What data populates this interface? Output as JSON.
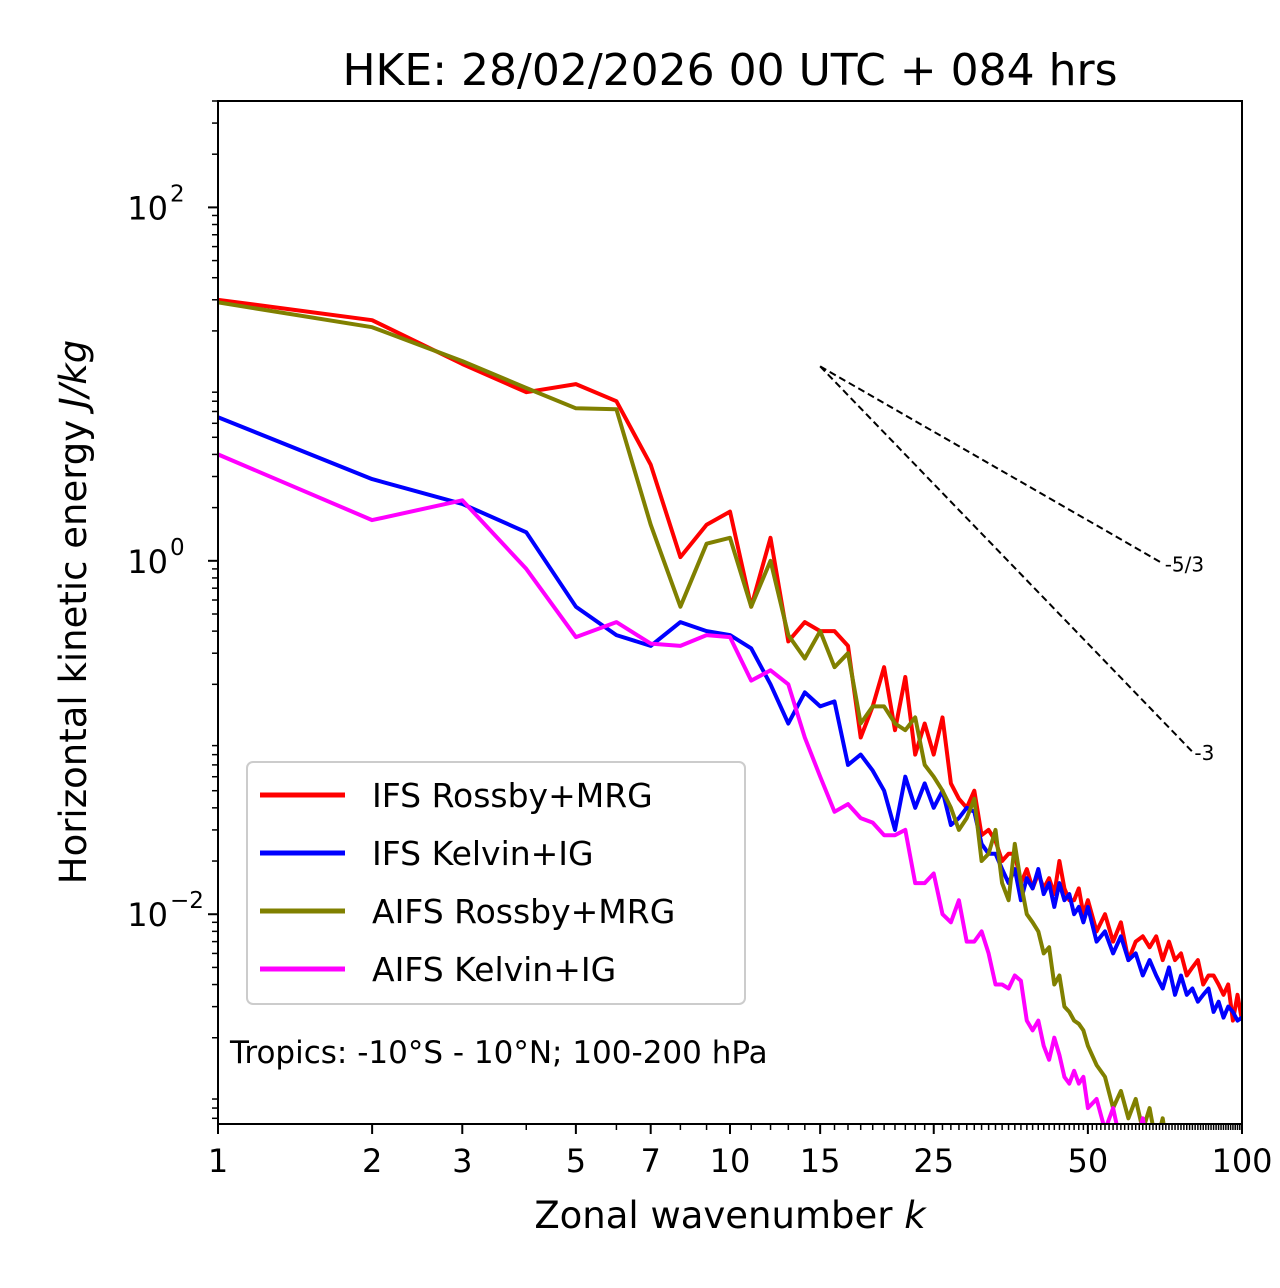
{
  "chart_data": {
    "type": "line",
    "title": "HKE: 28/02/2026 00 UTC + 084 hrs",
    "xlabel": "Zonal wavenumber ",
    "xlabel_italic": "k",
    "ylabel": "Horizontal kinetic energy ",
    "ylabel_italic": "J/kg",
    "xscale": "log",
    "yscale": "log",
    "xlim": [
      1,
      100
    ],
    "ylim": [
      0.00065,
      400
    ],
    "xticks": [
      {
        "value": 1,
        "label": "1"
      },
      {
        "value": 2,
        "label": "2"
      },
      {
        "value": 3,
        "label": "3"
      },
      {
        "value": 5,
        "label": "5"
      },
      {
        "value": 7,
        "label": "7"
      },
      {
        "value": 10,
        "label": "10"
      },
      {
        "value": 15,
        "label": "15"
      },
      {
        "value": 25,
        "label": "25"
      },
      {
        "value": 50,
        "label": "50"
      },
      {
        "value": 100,
        "label": "100"
      }
    ],
    "yticks": [
      {
        "value": 0.01,
        "base": "10",
        "exp": "−2"
      },
      {
        "value": 1,
        "base": "10",
        "exp": "0"
      },
      {
        "value": 100,
        "base": "10",
        "exp": "2"
      }
    ],
    "annotation": "Tropics: -10°S - 10°N; 100-200 hPa",
    "reference_slopes": [
      {
        "label": "-5/3",
        "slope": -1.6667,
        "x_start": 15,
        "x_end": 70,
        "y_start": 12.6
      },
      {
        "label": "-3",
        "slope": -3,
        "x_start": 15,
        "x_end": 80,
        "y_start": 12.6
      }
    ],
    "legend_position": "center-left",
    "series": [
      {
        "name": "IFS Rossby+MRG",
        "color": "#ff0000",
        "x": [
          1,
          2,
          3,
          4,
          5,
          6,
          7,
          8,
          9,
          10,
          11,
          12,
          13,
          14,
          15,
          16,
          17,
          18,
          19,
          20,
          21,
          22,
          23,
          24,
          25,
          26,
          27,
          28,
          29,
          30,
          31,
          32,
          33,
          34,
          35,
          36,
          37,
          38,
          39,
          40,
          41,
          42,
          43,
          44,
          45,
          46,
          47,
          48,
          49,
          50,
          52,
          54,
          56,
          58,
          60,
          62,
          64,
          66,
          68,
          70,
          72,
          74,
          76,
          78,
          80,
          82,
          84,
          86,
          88,
          90,
          92,
          94,
          96,
          98,
          100
        ],
        "values": [
          30,
          23,
          13,
          9,
          10,
          8,
          3.5,
          1.05,
          1.6,
          1.9,
          0.55,
          1.35,
          0.35,
          0.45,
          0.4,
          0.4,
          0.33,
          0.1,
          0.15,
          0.25,
          0.11,
          0.22,
          0.08,
          0.12,
          0.08,
          0.13,
          0.055,
          0.045,
          0.04,
          0.05,
          0.028,
          0.03,
          0.026,
          0.02,
          0.022,
          0.022,
          0.015,
          0.018,
          0.014,
          0.017,
          0.014,
          0.016,
          0.013,
          0.02,
          0.014,
          0.012,
          0.012,
          0.014,
          0.01,
          0.012,
          0.008,
          0.01,
          0.007,
          0.009,
          0.0055,
          0.007,
          0.0075,
          0.0065,
          0.0075,
          0.0055,
          0.007,
          0.0055,
          0.006,
          0.0045,
          0.005,
          0.0055,
          0.004,
          0.0045,
          0.0045,
          0.004,
          0.0035,
          0.004,
          0.0025,
          0.0035,
          0.0025
        ]
      },
      {
        "name": "IFS Kelvin+IG",
        "color": "#0000ff",
        "x": [
          1,
          2,
          3,
          4,
          5,
          6,
          7,
          8,
          9,
          10,
          11,
          12,
          13,
          14,
          15,
          16,
          17,
          18,
          19,
          20,
          21,
          22,
          23,
          24,
          25,
          26,
          27,
          28,
          29,
          30,
          31,
          32,
          33,
          34,
          35,
          36,
          37,
          38,
          39,
          40,
          41,
          42,
          43,
          44,
          45,
          46,
          47,
          48,
          49,
          50,
          52,
          54,
          56,
          58,
          60,
          62,
          64,
          66,
          68,
          70,
          72,
          74,
          76,
          78,
          80,
          82,
          84,
          86,
          88,
          90,
          92,
          94,
          96,
          98,
          100
        ],
        "values": [
          6.5,
          2.9,
          2.1,
          1.45,
          0.55,
          0.38,
          0.33,
          0.45,
          0.4,
          0.38,
          0.32,
          0.2,
          0.12,
          0.18,
          0.15,
          0.16,
          0.07,
          0.08,
          0.065,
          0.05,
          0.03,
          0.06,
          0.04,
          0.055,
          0.04,
          0.05,
          0.032,
          0.035,
          0.04,
          0.038,
          0.025,
          0.022,
          0.022,
          0.018,
          0.015,
          0.018,
          0.012,
          0.016,
          0.014,
          0.018,
          0.013,
          0.015,
          0.011,
          0.015,
          0.012,
          0.013,
          0.01,
          0.011,
          0.009,
          0.011,
          0.007,
          0.008,
          0.006,
          0.0075,
          0.0055,
          0.006,
          0.0045,
          0.0055,
          0.0045,
          0.0038,
          0.005,
          0.0035,
          0.0045,
          0.0035,
          0.0038,
          0.0032,
          0.0035,
          0.0038,
          0.0028,
          0.0032,
          0.0026,
          0.003,
          0.0028,
          0.0025,
          0.0026
        ]
      },
      {
        "name": "AIFS Rossby+MRG",
        "color": "#808000",
        "x": [
          1,
          2,
          3,
          4,
          5,
          6,
          7,
          8,
          9,
          10,
          11,
          12,
          13,
          14,
          15,
          16,
          17,
          18,
          19,
          20,
          21,
          22,
          23,
          24,
          25,
          26,
          27,
          28,
          29,
          30,
          31,
          32,
          33,
          34,
          35,
          36,
          37,
          38,
          39,
          40,
          41,
          42,
          43,
          44,
          45,
          46,
          47,
          48,
          49,
          50,
          52,
          54,
          56,
          58,
          60,
          62,
          64,
          66,
          68,
          70,
          72
        ],
        "values": [
          29,
          21,
          13.5,
          9.5,
          7.3,
          7.2,
          1.6,
          0.55,
          1.25,
          1.35,
          0.55,
          1.0,
          0.38,
          0.28,
          0.4,
          0.25,
          0.3,
          0.12,
          0.15,
          0.15,
          0.12,
          0.11,
          0.13,
          0.07,
          0.06,
          0.05,
          0.04,
          0.03,
          0.035,
          0.045,
          0.02,
          0.022,
          0.03,
          0.015,
          0.012,
          0.025,
          0.015,
          0.01,
          0.009,
          0.008,
          0.006,
          0.0065,
          0.004,
          0.0045,
          0.003,
          0.0028,
          0.0025,
          0.0024,
          0.0022,
          0.0018,
          0.0014,
          0.0012,
          0.0008,
          0.001,
          0.0007,
          0.0009,
          0.0006,
          0.0008,
          0.0005,
          0.0007,
          0.0004
        ]
      },
      {
        "name": "AIFS Kelvin+IG",
        "color": "#ff00ff",
        "x": [
          1,
          2,
          3,
          4,
          5,
          6,
          7,
          8,
          9,
          10,
          11,
          12,
          13,
          14,
          15,
          16,
          17,
          18,
          19,
          20,
          21,
          22,
          23,
          24,
          25,
          26,
          27,
          28,
          29,
          30,
          31,
          32,
          33,
          34,
          35,
          36,
          37,
          38,
          39,
          40,
          41,
          42,
          43,
          44,
          45,
          46,
          47,
          48,
          49,
          50,
          52,
          54,
          56,
          58,
          60,
          62,
          64,
          66,
          68,
          70
        ],
        "values": [
          4,
          1.7,
          2.2,
          0.9,
          0.37,
          0.45,
          0.34,
          0.33,
          0.38,
          0.37,
          0.21,
          0.24,
          0.2,
          0.1,
          0.06,
          0.038,
          0.042,
          0.035,
          0.033,
          0.028,
          0.028,
          0.03,
          0.015,
          0.015,
          0.017,
          0.01,
          0.009,
          0.012,
          0.007,
          0.007,
          0.008,
          0.006,
          0.004,
          0.004,
          0.0038,
          0.0045,
          0.0042,
          0.0025,
          0.0022,
          0.0025,
          0.0018,
          0.0015,
          0.002,
          0.0016,
          0.0012,
          0.0011,
          0.0013,
          0.0011,
          0.0012,
          0.0008,
          0.0009,
          0.0006,
          0.0008,
          0.0005,
          0.0006,
          0.0005,
          0.0007,
          0.0004,
          0.0005,
          0.0004
        ]
      }
    ]
  }
}
